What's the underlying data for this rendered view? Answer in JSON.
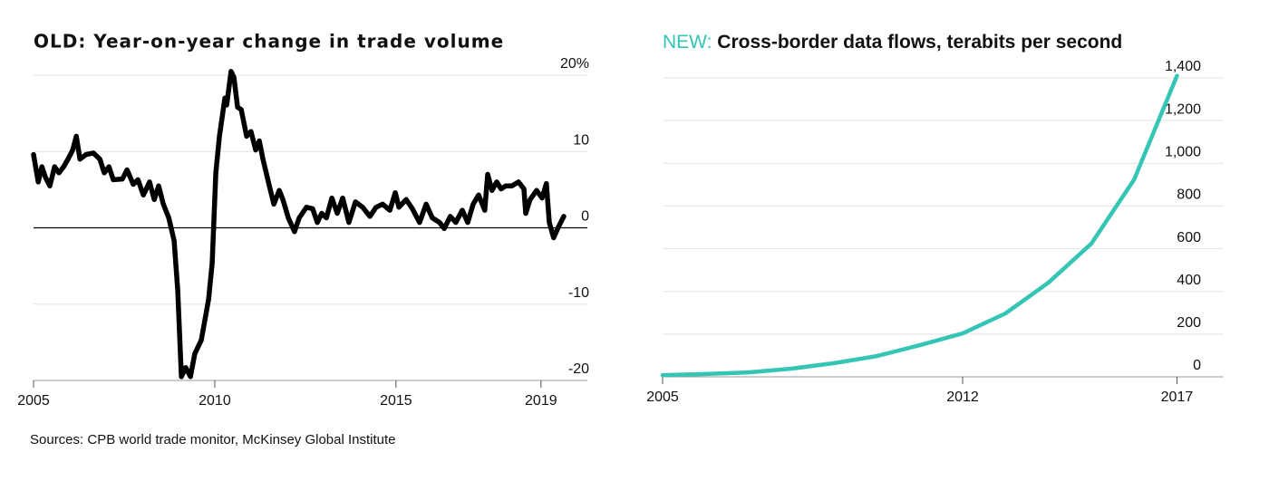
{
  "chart_data": [
    {
      "type": "line",
      "title": "OLD: Year-on-year change in trade volume",
      "x": [
        2005.0,
        2005.13,
        2005.23,
        2005.33,
        2005.45,
        2005.58,
        2005.7,
        2005.83,
        2005.95,
        2006.08,
        2006.18,
        2006.28,
        2006.45,
        2006.65,
        2006.83,
        2006.95,
        2007.08,
        2007.2,
        2007.45,
        2007.58,
        2007.75,
        2007.88,
        2008.03,
        2008.2,
        2008.33,
        2008.45,
        2008.58,
        2008.73,
        2008.88,
        2008.98,
        2009.08,
        2009.2,
        2009.33,
        2009.45,
        2009.63,
        2009.83,
        2009.93,
        2010.03,
        2010.13,
        2010.28,
        2010.33,
        2010.45,
        2010.53,
        2010.63,
        2010.73,
        2010.88,
        2011.0,
        2011.13,
        2011.23,
        2011.33,
        2011.48,
        2011.63,
        2011.78,
        2011.88,
        2012.03,
        2012.2,
        2012.33,
        2012.53,
        2012.7,
        2012.83,
        2012.95,
        2013.08,
        2013.23,
        2013.38,
        2013.53,
        2013.7,
        2013.88,
        2014.08,
        2014.28,
        2014.45,
        2014.63,
        2014.83,
        2014.98,
        2015.08,
        2015.28,
        2015.45,
        2015.65,
        2015.83,
        2016.0,
        2016.2,
        2016.33,
        2016.5,
        2016.65,
        2016.83,
        2016.98,
        2017.13,
        2017.28,
        2017.45,
        2017.53,
        2017.65,
        2017.78,
        2017.9,
        2018.03,
        2018.2,
        2018.38,
        2018.53,
        2018.58,
        2018.7,
        2018.88,
        2019.03,
        2019.15,
        2019.23,
        2019.35,
        2019.48,
        2019.63
      ],
      "values": [
        9.6,
        6,
        8,
        6.6,
        5.5,
        8,
        7.2,
        8,
        9,
        10.2,
        12,
        9,
        9.6,
        9.8,
        9,
        7.2,
        8,
        6.3,
        6.4,
        7.6,
        5.7,
        6.3,
        4.3,
        6,
        3.7,
        5.5,
        3.1,
        1.3,
        -1.7,
        -8.2,
        -19.5,
        -18.3,
        -19.5,
        -16.5,
        -14.7,
        -9.4,
        -4.6,
        7.2,
        12,
        17,
        16.1,
        20.5,
        19.7,
        15.8,
        15.5,
        12,
        12.6,
        10.2,
        11.4,
        9,
        6,
        3.1,
        4.9,
        3.7,
        1.3,
        -0.5,
        1.3,
        2.7,
        2.5,
        0.7,
        1.9,
        1.3,
        3.9,
        1.9,
        3.9,
        0.7,
        3.4,
        2.7,
        1.5,
        2.7,
        3.1,
        2.3,
        4.6,
        2.7,
        3.7,
        2.5,
        0.7,
        3.1,
        1.3,
        0.7,
        -0.1,
        1.5,
        0.7,
        2.3,
        0.7,
        3.1,
        4.3,
        2.3,
        7,
        4.9,
        6,
        5.1,
        5.5,
        5.5,
        6,
        5.1,
        1.9,
        3.7,
        4.9,
        3.9,
        5.8,
        0.7,
        -1.3,
        0.1,
        1.5
      ],
      "color": "#000000",
      "xlim": [
        2005,
        2020.28
      ],
      "xticks": [
        2005,
        2010,
        2015,
        2019
      ],
      "ylim": [
        -20,
        20
      ],
      "yticks": [
        {
          "value": 20,
          "label": "20%"
        },
        10,
        0,
        -10,
        -20
      ],
      "grid": true,
      "zero_line": true,
      "source": "Sources: CPB world trade monitor, McKinsey Global Institute"
    },
    {
      "type": "line",
      "title_prefix": "NEW:",
      "title": "Cross-border data flows, terabits per second",
      "x": [
        2005,
        2006,
        2007,
        2008,
        2009,
        2010,
        2011,
        2012,
        2013,
        2014,
        2015,
        2016,
        2017
      ],
      "values": [
        8,
        13,
        21,
        38,
        64,
        97,
        148,
        203,
        297,
        441,
        623,
        924,
        1410
      ],
      "color": "#35c5b5",
      "xlim": [
        2005,
        2018.09
      ],
      "xticks": [
        2005,
        2012,
        2017
      ],
      "ylim": [
        0,
        1400
      ],
      "yticks": [
        0,
        200,
        400,
        600,
        800,
        {
          "value": 1000,
          "label": "1,000"
        },
        {
          "value": 1200,
          "label": "1,200"
        },
        {
          "value": 1400,
          "label": "1,400"
        }
      ],
      "grid": true
    }
  ]
}
